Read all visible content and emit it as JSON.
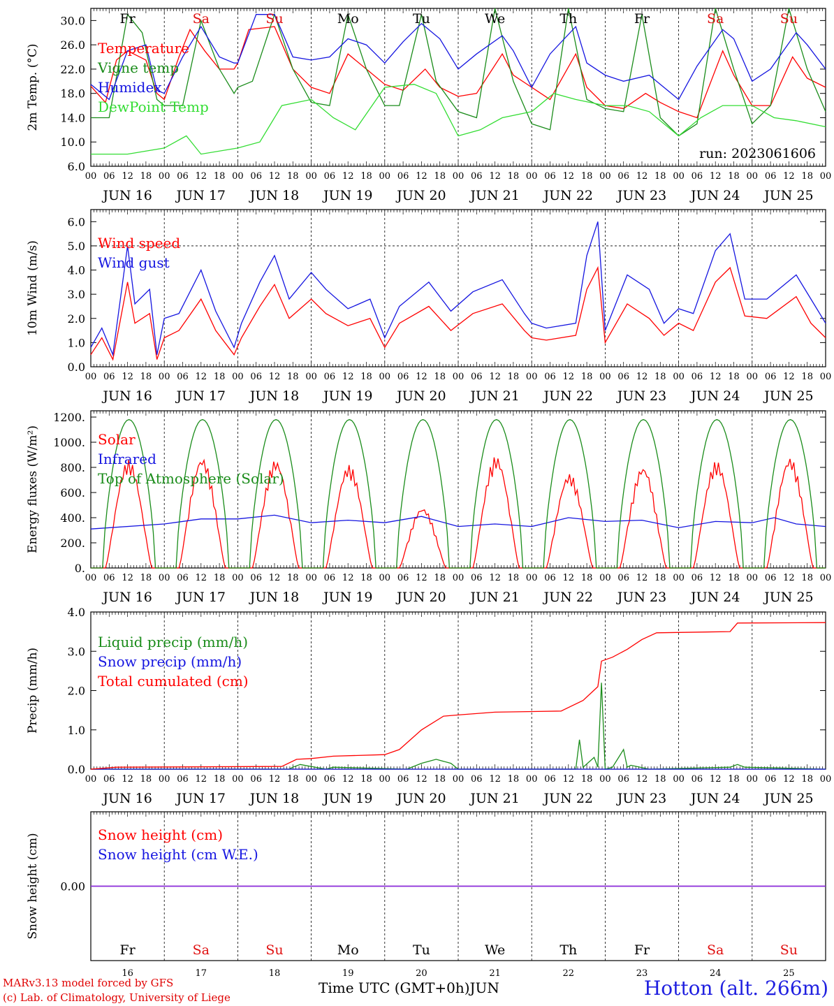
{
  "run_label": "run: 2023061606",
  "dates": [
    "JUN 16",
    "JUN 17",
    "JUN 18",
    "JUN 19",
    "JUN 20",
    "JUN 21",
    "JUN 22",
    "JUN 23",
    "JUN 24",
    "JUN 25"
  ],
  "day_numbers": [
    "16",
    "17",
    "18",
    "19",
    "20",
    "21",
    "22",
    "23",
    "24",
    "25"
  ],
  "weekdays": [
    "Fr",
    "Sa",
    "Su",
    "Mo",
    "Tu",
    "We",
    "Th",
    "Fr",
    "Sa",
    "Su"
  ],
  "hour_ticks": [
    "00",
    "06",
    "12",
    "18"
  ],
  "hour_end": "00",
  "colors": {
    "weekday": "#000000",
    "weekend": "#e01010",
    "red": "#ff0000",
    "green": "#1a8c1a",
    "blue": "#1515e0",
    "lightgreen": "#33dd33",
    "purple": "#8a2be2"
  },
  "footer": {
    "xlabel": "Time UTC (GMT+0h)",
    "month": "JUN",
    "credit_line1": "MARv3.13 model forced by GFS",
    "credit_line2": "(c) Lab. of Climatology, University of Liege",
    "station": "Hotton (alt. 266m)"
  },
  "chart_data": [
    {
      "type": "line",
      "ylabel": "2m Temp. (°C)",
      "ylim": [
        6,
        32
      ],
      "yticks": [
        "6.0",
        "10.0",
        "14.0",
        "18.0",
        "22.0",
        "26.0",
        "30.0"
      ],
      "x_unit": "days since 2023-06-16 00 UTC",
      "series": [
        {
          "name": "Temperature",
          "color": "red",
          "x": [
            0,
            0.2,
            0.35,
            0.5,
            0.75,
            0.9,
            1,
            1.2,
            1.35,
            1.55,
            1.75,
            1.95,
            2,
            2.15,
            2.5,
            2.75,
            3,
            3.25,
            3.5,
            3.75,
            4,
            4.25,
            4.55,
            4.75,
            5,
            5.25,
            5.6,
            5.75,
            6,
            6.25,
            6.6,
            6.75,
            7,
            7.25,
            7.55,
            7.75,
            8,
            8.25,
            8.6,
            8.75,
            9,
            9.25,
            9.55,
            9.75,
            10
          ],
          "y": [
            19.2,
            16.5,
            23.5,
            25,
            23.5,
            18,
            17,
            24,
            28.5,
            25,
            22,
            22,
            23,
            28.5,
            29,
            22,
            19,
            18,
            24.5,
            22,
            19.5,
            18.5,
            22,
            19,
            17.5,
            18,
            24.5,
            21,
            19,
            17,
            24.5,
            19,
            16,
            15.5,
            18,
            16.5,
            15,
            14,
            25,
            21,
            16,
            16,
            24,
            20.5,
            19
          ]
        },
        {
          "name": "Vigne temp",
          "color": "green",
          "x": [
            0,
            0.25,
            0.5,
            0.7,
            0.9,
            1,
            1.25,
            1.5,
            1.75,
            1.95,
            2,
            2.2,
            2.5,
            2.75,
            3,
            3.25,
            3.5,
            3.75,
            4,
            4.2,
            4.5,
            4.7,
            5,
            5.25,
            5.5,
            5.75,
            6,
            6.25,
            6.5,
            6.75,
            7,
            7.25,
            7.5,
            7.75,
            8,
            8.25,
            8.5,
            8.75,
            9,
            9.25,
            9.5,
            9.75,
            10
          ],
          "y": [
            14,
            14,
            31,
            28,
            17,
            16,
            16,
            30,
            22,
            18,
            19,
            20,
            31,
            22,
            16.5,
            16,
            31,
            22,
            16,
            16,
            31,
            20,
            15,
            14,
            32,
            20,
            13,
            12,
            32,
            17,
            15.5,
            15,
            31,
            14,
            11,
            13,
            32,
            22,
            13,
            16,
            32,
            22,
            15
          ]
        },
        {
          "name": "Humidex",
          "color": "blue",
          "x": [
            0,
            0.25,
            0.5,
            0.75,
            0.9,
            1,
            1.25,
            1.5,
            1.75,
            1.95,
            2,
            2.25,
            2.5,
            2.75,
            3,
            3.25,
            3.5,
            3.75,
            4,
            4.25,
            4.5,
            4.75,
            5,
            5.25,
            5.6,
            5.75,
            6,
            6.25,
            6.6,
            6.75,
            7,
            7.25,
            7.6,
            7.75,
            8,
            8.25,
            8.6,
            8.75,
            9,
            9.25,
            9.6,
            9.75,
            10
          ],
          "y": [
            19.5,
            17,
            25,
            26,
            18.5,
            18,
            24,
            29,
            24,
            23,
            23,
            31,
            31,
            24,
            23.5,
            24,
            27,
            26,
            23,
            26.5,
            29.5,
            27,
            22,
            24.5,
            27.5,
            25,
            19,
            24.5,
            29,
            23,
            21,
            20,
            21,
            19.5,
            17,
            22.5,
            28.5,
            27,
            20,
            22,
            28,
            26,
            22
          ]
        },
        {
          "name": "DewPoint Temp",
          "color": "lightgreen",
          "x": [
            0,
            0.5,
            1,
            1.3,
            1.5,
            2,
            2.3,
            2.6,
            3,
            3.3,
            3.6,
            4,
            4.4,
            4.7,
            5,
            5.3,
            5.6,
            6,
            6.3,
            6.6,
            7,
            7.3,
            7.6,
            8,
            8.3,
            8.6,
            9,
            9.3,
            9.6,
            10
          ],
          "y": [
            8,
            8,
            9,
            11,
            8,
            9,
            10,
            16,
            17,
            14,
            12,
            19,
            19.5,
            18,
            11,
            12,
            14,
            15,
            18,
            17,
            16,
            16,
            15,
            11,
            14,
            16,
            16,
            14,
            13.5,
            12.5
          ]
        }
      ],
      "legend": [
        "Temperature",
        "Vigne temp",
        "Humidex",
        "DewPoint Temp"
      ]
    },
    {
      "type": "line",
      "ylabel": "10m Wind (m/s)",
      "ylim": [
        0,
        6.5
      ],
      "yticks": [
        "0.0",
        "1.0",
        "2.0",
        "3.0",
        "4.0",
        "5.0",
        "6.0"
      ],
      "series": [
        {
          "name": "Wind speed",
          "color": "red",
          "x": [
            0,
            0.15,
            0.3,
            0.5,
            0.6,
            0.8,
            0.9,
            1,
            1.2,
            1.5,
            1.7,
            1.95,
            2.05,
            2.3,
            2.5,
            2.7,
            3,
            3.2,
            3.5,
            3.8,
            4,
            4.2,
            4.6,
            4.9,
            5.2,
            5.6,
            5.9,
            6,
            6.2,
            6.6,
            6.75,
            6.9,
            7,
            7.3,
            7.6,
            7.8,
            8,
            8.2,
            8.5,
            8.7,
            8.9,
            9.2,
            9.6,
            9.8,
            10
          ],
          "y": [
            0.5,
            1.2,
            0.3,
            3.5,
            1.8,
            2.2,
            0.3,
            1.2,
            1.5,
            2.8,
            1.5,
            0.5,
            1.2,
            2.5,
            3.4,
            2,
            2.8,
            2.2,
            1.7,
            2,
            0.8,
            1.8,
            2.5,
            1.5,
            2.2,
            2.6,
            1.5,
            1.2,
            1.1,
            1.3,
            3.2,
            4.1,
            1,
            2.6,
            2,
            1.3,
            1.8,
            1.5,
            3.5,
            4.1,
            2.1,
            2,
            2.9,
            1.8,
            1.2
          ]
        },
        {
          "name": "Wind gust",
          "color": "blue",
          "x": [
            0,
            0.15,
            0.3,
            0.5,
            0.6,
            0.8,
            0.9,
            1,
            1.2,
            1.5,
            1.7,
            1.95,
            2.05,
            2.3,
            2.5,
            2.7,
            3,
            3.2,
            3.5,
            3.8,
            4,
            4.2,
            4.6,
            4.9,
            5.2,
            5.6,
            5.9,
            6,
            6.2,
            6.6,
            6.75,
            6.9,
            7,
            7.3,
            7.6,
            7.8,
            8,
            8.2,
            8.5,
            8.7,
            8.9,
            9.2,
            9.6,
            9.8,
            10
          ],
          "y": [
            0.8,
            1.6,
            0.5,
            5,
            2.6,
            3.2,
            0.5,
            2,
            2.2,
            4,
            2.3,
            0.8,
            1.8,
            3.5,
            4.6,
            2.8,
            3.9,
            3.2,
            2.4,
            2.8,
            1.2,
            2.5,
            3.5,
            2.3,
            3.1,
            3.6,
            2.2,
            1.8,
            1.6,
            1.8,
            4.6,
            6,
            1.5,
            3.8,
            3.2,
            1.8,
            2.4,
            2.2,
            4.8,
            5.5,
            2.8,
            2.8,
            3.8,
            2.8,
            1.8
          ]
        }
      ],
      "legend": [
        "Wind speed",
        "Wind gust"
      ]
    },
    {
      "type": "line",
      "ylabel": "Energy fluxes (W/m²)",
      "ylim": [
        0,
        1250
      ],
      "yticks": [
        "0.",
        "200.",
        "400.",
        "600.",
        "800.",
        "1000.",
        "1200."
      ],
      "series": [
        {
          "name": "Solar",
          "color": "red",
          "daily_peak": [
            860,
            880,
            860,
            820,
            480,
            890,
            750,
            810,
            850,
            880
          ]
        },
        {
          "name": "Infrared",
          "color": "blue",
          "x": [
            0,
            1,
            1.5,
            2,
            2.5,
            3,
            3.5,
            4,
            4.5,
            5,
            5.5,
            6,
            6.5,
            7,
            7.5,
            8,
            8.5,
            9,
            9.3,
            9.6,
            10
          ],
          "y": [
            310,
            350,
            390,
            390,
            420,
            360,
            380,
            360,
            410,
            330,
            350,
            330,
            400,
            370,
            380,
            320,
            370,
            360,
            400,
            350,
            330
          ]
        },
        {
          "name": "Top of Atmosphere (Solar)",
          "color": "green",
          "daily_peak": [
            1180,
            1180,
            1180,
            1180,
            1180,
            1180,
            1180,
            1180,
            1180,
            1180
          ]
        }
      ],
      "legend": [
        "Solar",
        "Infrared",
        "Top of Atmosphere (Solar)"
      ]
    },
    {
      "type": "line",
      "ylabel": "Precip (mm/h)",
      "ylim": [
        0,
        4
      ],
      "yticks": [
        "0.0",
        "1.0",
        "2.0",
        "3.0",
        "4.0"
      ],
      "series": [
        {
          "name": "Liquid precip (mm/h)",
          "color": "green",
          "x": [
            0,
            2.7,
            2.75,
            2.85,
            3.2,
            3.3,
            4.3,
            4.5,
            4.7,
            4.9,
            5,
            6.6,
            6.65,
            6.7,
            6.85,
            6.9,
            6.95,
            7,
            7.1,
            7.25,
            7.3,
            7.35,
            7.6,
            8.7,
            8.8,
            8.9,
            10
          ],
          "y": [
            0,
            0,
            0.05,
            0.12,
            0,
            0.05,
            0,
            0.15,
            0.25,
            0.15,
            0,
            0,
            0.75,
            0.05,
            0.3,
            0.05,
            2.2,
            0,
            0.05,
            0.5,
            0.05,
            0.1,
            0,
            0.05,
            0.12,
            0.05,
            0
          ]
        },
        {
          "name": "Snow precip (mm/h)",
          "color": "blue",
          "x": [
            0,
            10
          ],
          "y": [
            0,
            0
          ]
        },
        {
          "name": "Total cumulated (cm)",
          "color": "red",
          "x": [
            0,
            0.35,
            2.6,
            2.8,
            3,
            3.3,
            4,
            4.2,
            4.5,
            4.8,
            5,
            5.5,
            6.4,
            6.7,
            6.9,
            6.95,
            7.1,
            7.3,
            7.5,
            7.7,
            8.7,
            8.8,
            10
          ],
          "y": [
            0,
            0.05,
            0.07,
            0.25,
            0.27,
            0.33,
            0.37,
            0.5,
            1,
            1.35,
            1.38,
            1.45,
            1.48,
            1.75,
            2.1,
            2.75,
            2.85,
            3.05,
            3.3,
            3.47,
            3.5,
            3.72,
            3.73
          ]
        }
      ],
      "legend": [
        "Liquid precip (mm/h)",
        "Snow precip (mm/h)",
        "Total cumulated (cm)"
      ]
    },
    {
      "type": "line",
      "ylabel": "Snow height (cm)",
      "ylim": [
        -1,
        1
      ],
      "yticks": [
        "0.00"
      ],
      "series": [
        {
          "name": "Snow height (cm)",
          "color": "red",
          "x": [
            0,
            10
          ],
          "y": [
            0,
            0
          ]
        },
        {
          "name": "Snow height (cm W.E.)",
          "color": "blue",
          "x": [
            0,
            10
          ],
          "y": [
            0,
            0
          ]
        }
      ],
      "legend": [
        "Snow height (cm)",
        "Snow height (cm W.E.)"
      ]
    }
  ]
}
